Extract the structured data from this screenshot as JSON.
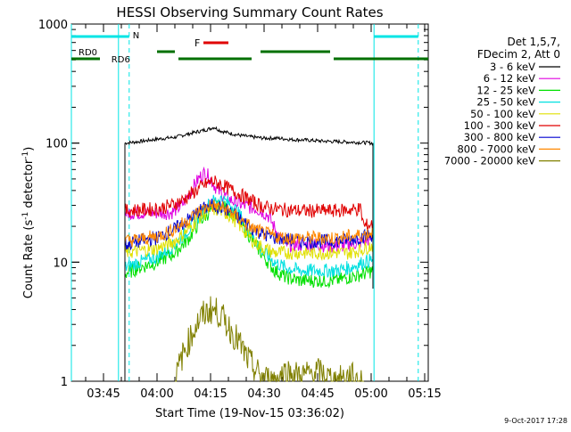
{
  "chart_data": {
    "type": "line",
    "title": "HESSI Observing Summary Count Rates",
    "xlabel": "Start Time (19-Nov-15 03:36:02)",
    "ylabel_main": "Count Rate (s",
    "ylabel_sup1": "-1",
    "ylabel_mid": " detector",
    "ylabel_sup2": "-1",
    "ylabel_end": ")",
    "yscale": "log",
    "ylim": [
      1,
      1000
    ],
    "xlim_minutes": [
      36,
      136
    ],
    "y_ticks": [
      {
        "value": 1,
        "label": "1"
      },
      {
        "value": 10,
        "label": "10"
      },
      {
        "value": 100,
        "label": "100"
      },
      {
        "value": 1000,
        "label": "1000"
      }
    ],
    "x_ticks": [
      {
        "minute": 45,
        "label": "03:45"
      },
      {
        "minute": 60,
        "label": "04:00"
      },
      {
        "minute": 75,
        "label": "04:15"
      },
      {
        "minute": 90,
        "label": "04:30"
      },
      {
        "minute": 105,
        "label": "04:45"
      },
      {
        "minute": 120,
        "label": "05:00"
      },
      {
        "minute": 135,
        "label": "05:15"
      }
    ],
    "legend_header": [
      "Det 1,5,7,",
      "FDecim 2, Att 0"
    ],
    "series": [
      {
        "name": "3 - 6 keV",
        "color": "#000000",
        "points": [
          [
            51,
            100
          ],
          [
            55,
            103
          ],
          [
            60,
            108
          ],
          [
            65,
            112
          ],
          [
            70,
            122
          ],
          [
            74,
            130
          ],
          [
            76,
            136
          ],
          [
            78,
            126
          ],
          [
            82,
            118
          ],
          [
            86,
            113
          ],
          [
            90,
            110
          ],
          [
            94,
            110
          ],
          [
            98,
            107
          ],
          [
            102,
            106
          ],
          [
            106,
            104
          ],
          [
            110,
            103
          ],
          [
            114,
            102
          ],
          [
            118,
            101
          ],
          [
            120.5,
            100
          ]
        ]
      },
      {
        "name": "6 - 12 keV",
        "color": "#e000e0",
        "points": [
          [
            51,
            26
          ],
          [
            55,
            26
          ],
          [
            60,
            26
          ],
          [
            64,
            26
          ],
          [
            67,
            30
          ],
          [
            70,
            42
          ],
          [
            72,
            52
          ],
          [
            73.5,
            57
          ],
          [
            75,
            50
          ],
          [
            77,
            40
          ],
          [
            80,
            34
          ],
          [
            84,
            30
          ],
          [
            88,
            28
          ],
          [
            91,
            25
          ],
          [
            94,
            17
          ],
          [
            96,
            14
          ],
          [
            100,
            14
          ],
          [
            105,
            14
          ],
          [
            110,
            13.5
          ],
          [
            114,
            14
          ],
          [
            118,
            15
          ],
          [
            120.5,
            16
          ]
        ]
      },
      {
        "name": "12 - 25 keV",
        "color": "#00e000",
        "points": [
          [
            51,
            8
          ],
          [
            55,
            9
          ],
          [
            60,
            10
          ],
          [
            65,
            12
          ],
          [
            69,
            16
          ],
          [
            72,
            22
          ],
          [
            75,
            27
          ],
          [
            78,
            30
          ],
          [
            81,
            26
          ],
          [
            84,
            20
          ],
          [
            87,
            15
          ],
          [
            90,
            11
          ],
          [
            93,
            8.5
          ],
          [
            96,
            7.5
          ],
          [
            100,
            7
          ],
          [
            105,
            7
          ],
          [
            110,
            7
          ],
          [
            114,
            7.5
          ],
          [
            118,
            8
          ],
          [
            120.5,
            8.5
          ]
        ]
      },
      {
        "name": "25 - 50 keV",
        "color": "#00e0e0",
        "points": [
          [
            51,
            9
          ],
          [
            55,
            10
          ],
          [
            60,
            11
          ],
          [
            65,
            14
          ],
          [
            69,
            19
          ],
          [
            72,
            25
          ],
          [
            75,
            32
          ],
          [
            78,
            34
          ],
          [
            81,
            30
          ],
          [
            84,
            23
          ],
          [
            87,
            16
          ],
          [
            90,
            12
          ],
          [
            93,
            10
          ],
          [
            96,
            9
          ],
          [
            100,
            8.5
          ],
          [
            105,
            8.5
          ],
          [
            110,
            8.5
          ],
          [
            114,
            9
          ],
          [
            118,
            10
          ],
          [
            120.5,
            10.5
          ]
        ]
      },
      {
        "name": "50 - 100 keV",
        "color": "#e0e000",
        "points": [
          [
            51,
            12
          ],
          [
            55,
            12.5
          ],
          [
            60,
            13
          ],
          [
            65,
            15
          ],
          [
            69,
            19
          ],
          [
            72,
            24
          ],
          [
            75,
            28
          ],
          [
            78,
            27
          ],
          [
            81,
            24
          ],
          [
            84,
            19
          ],
          [
            87,
            15
          ],
          [
            90,
            13
          ],
          [
            93,
            12
          ],
          [
            96,
            12
          ],
          [
            100,
            12
          ],
          [
            105,
            12
          ],
          [
            110,
            12
          ],
          [
            114,
            12
          ],
          [
            118,
            13
          ],
          [
            120.5,
            14
          ]
        ]
      },
      {
        "name": "100 - 300 keV",
        "color": "#e00000",
        "points": [
          [
            51,
            27
          ],
          [
            55,
            27.5
          ],
          [
            60,
            28
          ],
          [
            64,
            30
          ],
          [
            67,
            33
          ],
          [
            70,
            38
          ],
          [
            73,
            44
          ],
          [
            75.5,
            48
          ],
          [
            78,
            45
          ],
          [
            81,
            40
          ],
          [
            84,
            36
          ],
          [
            87,
            32
          ],
          [
            90,
            29
          ],
          [
            93,
            28
          ],
          [
            96,
            27.5
          ],
          [
            100,
            27
          ],
          [
            105,
            27
          ],
          [
            110,
            27
          ],
          [
            114,
            27.5
          ],
          [
            117,
            28
          ],
          [
            118,
            20
          ],
          [
            120.5,
            21
          ]
        ]
      },
      {
        "name": "300 - 800 keV",
        "color": "#0000d0",
        "points": [
          [
            51,
            14
          ],
          [
            55,
            15
          ],
          [
            60,
            16
          ],
          [
            65,
            19
          ],
          [
            69,
            23
          ],
          [
            72,
            27
          ],
          [
            75,
            30
          ],
          [
            78,
            29
          ],
          [
            81,
            26
          ],
          [
            84,
            22
          ],
          [
            87,
            19
          ],
          [
            90,
            17
          ],
          [
            93,
            16
          ],
          [
            96,
            15.5
          ],
          [
            100,
            15
          ],
          [
            105,
            15
          ],
          [
            110,
            15
          ],
          [
            114,
            15.5
          ],
          [
            118,
            16.5
          ],
          [
            120.5,
            17
          ]
        ]
      },
      {
        "name": "800 - 7000 keV",
        "color": "#ff8800",
        "points": [
          [
            51,
            15
          ],
          [
            55,
            15.5
          ],
          [
            60,
            16.5
          ],
          [
            65,
            19
          ],
          [
            69,
            23
          ],
          [
            72,
            27
          ],
          [
            75,
            30
          ],
          [
            78,
            29
          ],
          [
            81,
            26
          ],
          [
            84,
            22
          ],
          [
            87,
            19
          ],
          [
            90,
            17.5
          ],
          [
            93,
            16.5
          ],
          [
            96,
            16
          ],
          [
            100,
            16
          ],
          [
            105,
            16
          ],
          [
            110,
            16
          ],
          [
            114,
            16.5
          ],
          [
            118,
            17
          ],
          [
            120.5,
            18
          ]
        ]
      },
      {
        "name": "7000 - 20000 keV",
        "color": "#808000",
        "points": [
          [
            65,
            1
          ],
          [
            67,
            1.6
          ],
          [
            69,
            2.2
          ],
          [
            71,
            3
          ],
          [
            73,
            3.6
          ],
          [
            75,
            4
          ],
          [
            77,
            3.8
          ],
          [
            79,
            3.2
          ],
          [
            81,
            2.6
          ],
          [
            83,
            2.1
          ],
          [
            85,
            1.6
          ],
          [
            87,
            1.3
          ],
          [
            89,
            1.1
          ],
          [
            92,
            1
          ],
          [
            96,
            1.2
          ],
          [
            100,
            1.1
          ],
          [
            105,
            1.2
          ],
          [
            110,
            1
          ],
          [
            114,
            1.1
          ],
          [
            118,
            1
          ]
        ]
      }
    ],
    "top_annotations": {
      "N_label": "N",
      "F_label": "F",
      "RD0_label": "RD0",
      "RD6_label": "RD6",
      "N_color": "#00e5e5",
      "F_color": "#e00000",
      "RD_color": "#007000"
    },
    "timestamp": "9-Oct-2017 17:28"
  }
}
